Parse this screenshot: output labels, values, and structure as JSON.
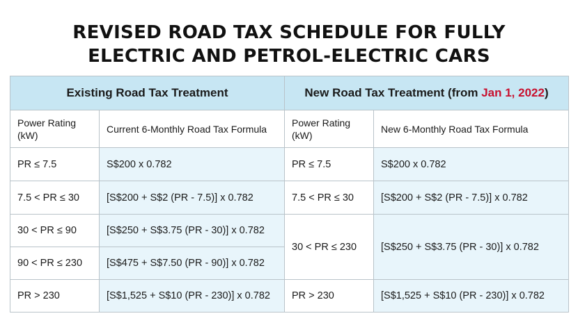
{
  "title": {
    "line1": "REVISED ROAD TAX SCHEDULE FOR FULLY",
    "line2": "ELECTRIC AND PETROL-ELECTRIC CARS"
  },
  "colors": {
    "header_bg": "#c7e6f3",
    "formula_bg": "#e8f5fb",
    "accent": "#c8102e",
    "border": "#b9c3c9"
  },
  "table": {
    "existing_header": "Existing Road Tax Treatment",
    "new_header_prefix": "New Road Tax Treatment (from ",
    "new_header_date": "Jan 1, 2022",
    "new_header_suffix": ")",
    "col_power_rating": "Power Rating (kW)",
    "col_current_formula": "Current 6-Monthly Road Tax Formula",
    "col_new_formula": "New 6-Monthly Road Tax Formula",
    "existing_rows": [
      {
        "pr": "PR ≤ 7.5",
        "formula": "S$200 x 0.782"
      },
      {
        "pr": "7.5 < PR ≤ 30",
        "formula": "[S$200 + S$2 (PR - 7.5)] x 0.782"
      },
      {
        "pr": "30 < PR ≤ 90",
        "formula": "[S$250 + S$3.75 (PR - 30)] x 0.782"
      },
      {
        "pr": "90 < PR ≤ 230",
        "formula": "[S$475 + S$7.50 (PR - 90)] x 0.782"
      },
      {
        "pr": "PR > 230",
        "formula": "[S$1,525 + S$10 (PR - 230)] x 0.782"
      }
    ],
    "new_rows": [
      {
        "pr": "PR ≤ 7.5",
        "formula": "S$200 x 0.782"
      },
      {
        "pr": "7.5 < PR ≤ 30",
        "formula": "[S$200 + S$2 (PR - 7.5)] x 0.782"
      },
      {
        "pr": "30 < PR ≤ 230",
        "formula": "[S$250 + S$3.75 (PR - 30)] x 0.782"
      },
      {
        "pr": "PR > 230",
        "formula": "[S$1,525 + S$10 (PR - 230)] x 0.782"
      }
    ]
  }
}
